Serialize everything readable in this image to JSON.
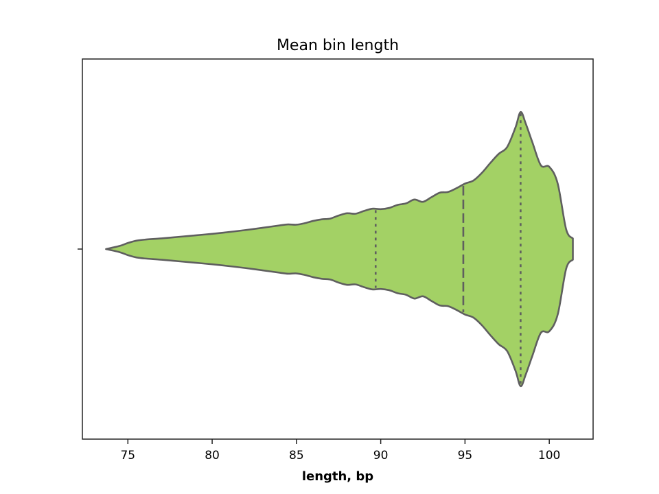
{
  "chart_data": {
    "type": "violin",
    "orientation": "horizontal",
    "title": "Mean bin length",
    "xlabel": "length, bp",
    "ylabel": "",
    "xlim": [
      72.3,
      102.6
    ],
    "xticks": [
      75,
      80,
      85,
      90,
      95,
      100
    ],
    "fill_color": "#a3d165",
    "edge_color": "#5f5f5f",
    "density": {
      "x": [
        73.7,
        74.5,
        75.0,
        75.5,
        76.0,
        77.0,
        78.0,
        79.0,
        80.0,
        81.0,
        82.0,
        83.0,
        84.0,
        84.5,
        85.0,
        85.5,
        86.0,
        86.5,
        87.0,
        87.5,
        88.0,
        88.5,
        89.0,
        89.5,
        90.0,
        90.5,
        91.0,
        91.5,
        92.0,
        92.5,
        93.0,
        93.5,
        94.0,
        94.5,
        95.0,
        95.5,
        96.0,
        96.5,
        97.0,
        97.5,
        98.0,
        98.3,
        98.6,
        99.0,
        99.5,
        100.0,
        100.5,
        101.0,
        101.4
      ],
      "half_width": [
        0.0,
        0.02,
        0.04,
        0.055,
        0.062,
        0.07,
        0.08,
        0.09,
        0.1,
        0.112,
        0.125,
        0.14,
        0.155,
        0.162,
        0.16,
        0.17,
        0.185,
        0.195,
        0.2,
        0.22,
        0.235,
        0.232,
        0.25,
        0.265,
        0.262,
        0.27,
        0.29,
        0.3,
        0.325,
        0.31,
        0.34,
        0.37,
        0.375,
        0.4,
        0.43,
        0.45,
        0.5,
        0.565,
        0.625,
        0.67,
        0.8,
        0.9,
        0.825,
        0.7,
        0.55,
        0.54,
        0.43,
        0.13,
        0.07
      ]
    },
    "quartiles": {
      "q1": 89.7,
      "median": 94.9,
      "q3": 98.3
    }
  }
}
